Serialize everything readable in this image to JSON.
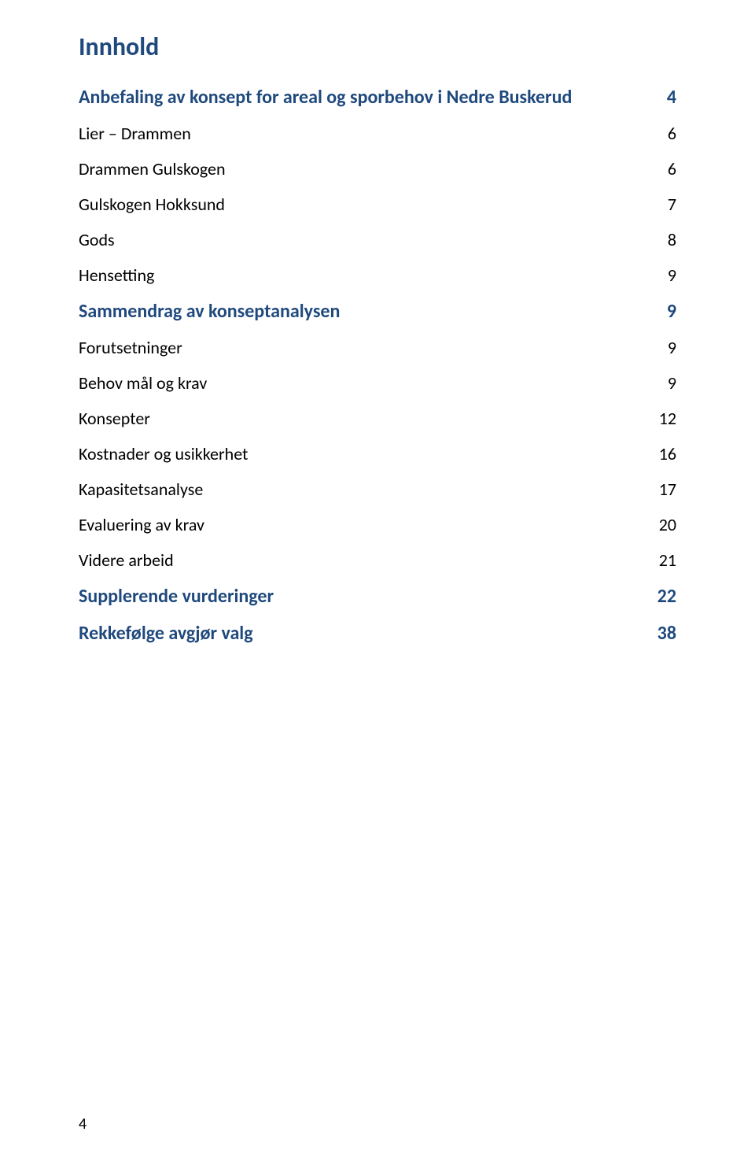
{
  "colors": {
    "heading": "#1f497d",
    "body": "#000000",
    "background": "#ffffff"
  },
  "typography": {
    "title_fontsize": 32,
    "heading_fontsize": 24,
    "sub_fontsize": 22,
    "page_number_fontsize": 20
  },
  "toc": {
    "title": "Innhold",
    "entries": [
      {
        "level": "heading",
        "label": "Anbefaling av konsept for areal og sporbehov i Nedre Buskerud",
        "page": "4"
      },
      {
        "level": "sub",
        "label": "Lier – Drammen",
        "page": "6"
      },
      {
        "level": "sub",
        "label": "Drammen Gulskogen",
        "page": "6"
      },
      {
        "level": "sub",
        "label": "Gulskogen Hokksund",
        "page": "7"
      },
      {
        "level": "sub",
        "label": "Gods",
        "page": "8"
      },
      {
        "level": "sub",
        "label": "Hensetting",
        "page": "9"
      },
      {
        "level": "heading",
        "label": "Sammendrag av konseptanalysen",
        "page": "9"
      },
      {
        "level": "sub",
        "label": "Forutsetninger",
        "page": "9"
      },
      {
        "level": "sub",
        "label": "Behov mål og krav",
        "page": "9"
      },
      {
        "level": "sub",
        "label": "Konsepter",
        "page": "12"
      },
      {
        "level": "sub",
        "label": "Kostnader og usikkerhet",
        "page": "16"
      },
      {
        "level": "sub",
        "label": "Kapasitetsanalyse",
        "page": "17"
      },
      {
        "level": "sub",
        "label": "Evaluering av krav",
        "page": "20"
      },
      {
        "level": "sub",
        "label": "Videre arbeid",
        "page": "21"
      },
      {
        "level": "heading",
        "label": "Supplerende vurderinger",
        "page": "22"
      },
      {
        "level": "heading",
        "label": "Rekkefølge avgjør valg",
        "page": "38"
      }
    ]
  },
  "footer_page_number": "4"
}
